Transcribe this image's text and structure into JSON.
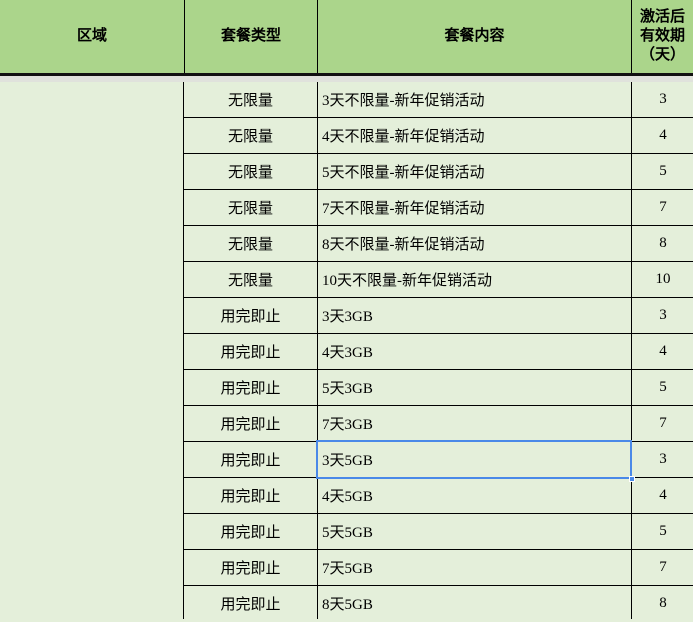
{
  "colors": {
    "header_bg": "#abd58b",
    "body_bg": "#e4efda",
    "split_bg": "#e0e2dc",
    "grid_line": "#000000",
    "selection_border": "#4a89e8"
  },
  "table": {
    "headers": [
      {
        "key": "region",
        "label": "区域"
      },
      {
        "key": "type",
        "label": "套餐类型"
      },
      {
        "key": "content",
        "label": "套餐内容"
      },
      {
        "key": "validity",
        "label": "激活后有效期（天）"
      }
    ],
    "region_value": "",
    "rows": [
      {
        "type": "无限量",
        "content": "3天不限量-新年促销活动",
        "validity": "3"
      },
      {
        "type": "无限量",
        "content": "4天不限量-新年促销活动",
        "validity": "4"
      },
      {
        "type": "无限量",
        "content": "5天不限量-新年促销活动",
        "validity": "5"
      },
      {
        "type": "无限量",
        "content": "7天不限量-新年促销活动",
        "validity": "7"
      },
      {
        "type": "无限量",
        "content": "8天不限量-新年促销活动",
        "validity": "8"
      },
      {
        "type": "无限量",
        "content": "10天不限量-新年促销活动",
        "validity": "10"
      },
      {
        "type": "用完即止",
        "content": "3天3GB",
        "validity": "3"
      },
      {
        "type": "用完即止",
        "content": "4天3GB",
        "validity": "4"
      },
      {
        "type": "用完即止",
        "content": "5天3GB",
        "validity": "5"
      },
      {
        "type": "用完即止",
        "content": "7天3GB",
        "validity": "7"
      },
      {
        "type": "用完即止",
        "content": "3天5GB",
        "validity": "3"
      },
      {
        "type": "用完即止",
        "content": "4天5GB",
        "validity": "4"
      },
      {
        "type": "用完即止",
        "content": "5天5GB",
        "validity": "5"
      },
      {
        "type": "用完即止",
        "content": "7天5GB",
        "validity": "7"
      },
      {
        "type": "用完即止",
        "content": "8天5GB",
        "validity": "8"
      }
    ],
    "selection": {
      "row_index": 10,
      "column": "content"
    }
  }
}
